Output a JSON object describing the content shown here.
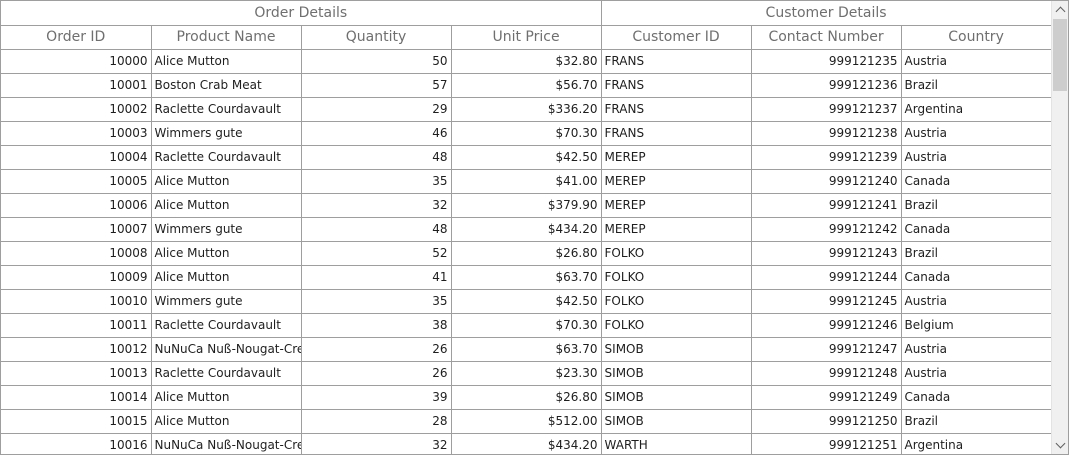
{
  "stacked_headers": {
    "order_details": "Order Details",
    "customer_details": "Customer Details"
  },
  "columns": [
    "Order ID",
    "Product Name",
    "Quantity",
    "Unit Price",
    "Customer ID",
    "Contact Number",
    "Country"
  ],
  "rows": [
    [
      "10000",
      "Alice Mutton",
      "50",
      "$32.80",
      "FRANS",
      "999121235",
      "Austria"
    ],
    [
      "10001",
      "Boston Crab Meat",
      "57",
      "$56.70",
      "FRANS",
      "999121236",
      "Brazil"
    ],
    [
      "10002",
      "Raclette Courdavault",
      "29",
      "$336.20",
      "FRANS",
      "999121237",
      "Argentina"
    ],
    [
      "10003",
      "Wimmers gute",
      "46",
      "$70.30",
      "FRANS",
      "999121238",
      "Austria"
    ],
    [
      "10004",
      "Raclette Courdavault",
      "48",
      "$42.50",
      "MEREP",
      "999121239",
      "Austria"
    ],
    [
      "10005",
      "Alice Mutton",
      "35",
      "$41.00",
      "MEREP",
      "999121240",
      "Canada"
    ],
    [
      "10006",
      "Alice Mutton",
      "32",
      "$379.90",
      "MEREP",
      "999121241",
      "Brazil"
    ],
    [
      "10007",
      "Wimmers gute",
      "48",
      "$434.20",
      "MEREP",
      "999121242",
      "Canada"
    ],
    [
      "10008",
      "Alice Mutton",
      "52",
      "$26.80",
      "FOLKO",
      "999121243",
      "Brazil"
    ],
    [
      "10009",
      "Alice Mutton",
      "41",
      "$63.70",
      "FOLKO",
      "999121244",
      "Canada"
    ],
    [
      "10010",
      "Wimmers gute",
      "35",
      "$42.50",
      "FOLKO",
      "999121245",
      "Austria"
    ],
    [
      "10011",
      "Raclette Courdavault",
      "38",
      "$70.30",
      "FOLKO",
      "999121246",
      "Belgium"
    ],
    [
      "10012",
      "NuNuCa Nuß-Nougat-Creme",
      "26",
      "$63.70",
      "SIMOB",
      "999121247",
      "Austria"
    ],
    [
      "10013",
      "Raclette Courdavault",
      "26",
      "$23.30",
      "SIMOB",
      "999121248",
      "Austria"
    ],
    [
      "10014",
      "Alice Mutton",
      "39",
      "$26.80",
      "SIMOB",
      "999121249",
      "Canada"
    ],
    [
      "10015",
      "Alice Mutton",
      "28",
      "$512.00",
      "SIMOB",
      "999121250",
      "Brazil"
    ],
    [
      "10016",
      "NuNuCa Nuß-Nougat-Creme",
      "32",
      "$434.20",
      "WARTH",
      "999121251",
      "Argentina"
    ]
  ],
  "scrollbar": {
    "position": 0.0,
    "up_icon": "chevron-up-icon",
    "down_icon": "chevron-down-icon"
  }
}
